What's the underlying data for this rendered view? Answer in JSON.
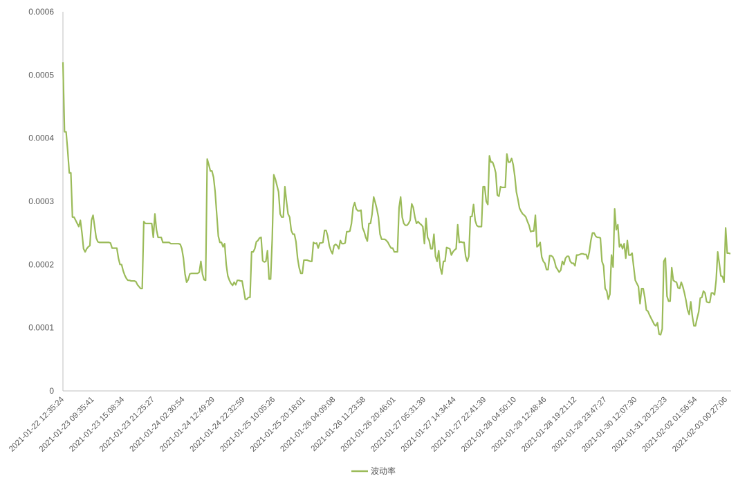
{
  "chart_data": {
    "type": "line",
    "title": "",
    "xlabel": "",
    "ylabel": "",
    "ylim": [
      0,
      0.0006
    ],
    "yticks": [
      "0",
      "0.0001",
      "0.0002",
      "0.0003",
      "0.0004",
      "0.0005",
      "0.0006"
    ],
    "ytick_values": [
      0,
      0.0001,
      0.0002,
      0.0003,
      0.0004,
      0.0005,
      0.0006
    ],
    "x_tick_labels": [
      "2021-01-22 12:35:24",
      "2021-01-23 09:35:41",
      "2021-01-23 15:08:34",
      "2021-01-23 21:25:27",
      "2021-01-24 02:30:54",
      "2021-01-24 12:49:29",
      "2021-01-24 22:32:59",
      "2021-01-25 10:05:26",
      "2021-01-25 20:18:01",
      "2021-01-26 04:09:08",
      "2021-01-26 11:23:58",
      "2021-01-26 20:46:01",
      "2021-01-27 05:31:39",
      "2021-01-27 14:34:44",
      "2021-01-27 22:41:39",
      "2021-01-28 04:50:10",
      "2021-01-28 12:48:46",
      "2021-01-28 19:21:12",
      "2021-01-28 23:47:27",
      "2021-01-30 12:07:30",
      "2021-01-31 20:23:23",
      "2021-02-02 01:56:54",
      "2021-02-03 00:27:06"
    ],
    "grid": false,
    "legend_position": "bottom",
    "colors": {
      "line": "#9bbb59",
      "axis": "#bfbfbf",
      "text": "#595959"
    },
    "series": [
      {
        "name": "波动率",
        "values": [
          0.00052,
          0.00041,
          0.00041,
          0.00038,
          0.000345,
          0.000345,
          0.000275,
          0.000275,
          0.00027,
          0.000265,
          0.00026,
          0.00027,
          0.00025,
          0.000225,
          0.00022,
          0.000225,
          0.000228,
          0.00023,
          0.00027,
          0.000278,
          0.00026,
          0.000242,
          0.000236,
          0.000235,
          0.000235,
          0.000235,
          0.000235,
          0.000235,
          0.000235,
          0.000235,
          0.000234,
          0.000226,
          0.000226,
          0.000226,
          0.000226,
          0.00021,
          0.0002,
          0.0002,
          0.00019,
          0.000183,
          0.000178,
          0.000175,
          0.000175,
          0.000174,
          0.000174,
          0.000174,
          0.000173,
          0.000168,
          0.000165,
          0.000162,
          0.000162,
          0.000268,
          0.000265,
          0.000265,
          0.000265,
          0.000265,
          0.000265,
          0.000243,
          0.00028,
          0.000255,
          0.000243,
          0.000243,
          0.000243,
          0.000235,
          0.000235,
          0.000235,
          0.000235,
          0.000235,
          0.000233,
          0.000233,
          0.000233,
          0.000233,
          0.000233,
          0.000233,
          0.000232,
          0.000225,
          0.00021,
          0.000185,
          0.000172,
          0.000176,
          0.000185,
          0.000186,
          0.000186,
          0.000186,
          0.000186,
          0.000186,
          0.000188,
          0.000205,
          0.000185,
          0.000176,
          0.000175,
          0.000367,
          0.000358,
          0.000348,
          0.000348,
          0.000338,
          0.000315,
          0.00028,
          0.000245,
          0.000235,
          0.000235,
          0.000228,
          0.000233,
          0.0002,
          0.000182,
          0.000175,
          0.00017,
          0.000167,
          0.000172,
          0.000168,
          0.000175,
          0.000175,
          0.000174,
          0.000174,
          0.00016,
          0.000145,
          0.000145,
          0.000148,
          0.000148,
          0.00022,
          0.00022,
          0.000225,
          0.000236,
          0.000238,
          0.000242,
          0.000243,
          0.000206,
          0.000204,
          0.000205,
          0.000222,
          0.000177,
          0.000177,
          0.00024,
          0.000342,
          0.000335,
          0.000325,
          0.000315,
          0.00028,
          0.000275,
          0.000275,
          0.000323,
          0.0003,
          0.00028,
          0.000275,
          0.000254,
          0.000248,
          0.000248,
          0.000236,
          0.00021,
          0.000195,
          0.000186,
          0.000186,
          0.000207,
          0.000207,
          0.000207,
          0.000206,
          0.000205,
          0.000205,
          0.000235,
          0.000233,
          0.000234,
          0.000226,
          0.000234,
          0.000234,
          0.000235,
          0.000254,
          0.000254,
          0.000245,
          0.00023,
          0.000222,
          0.000217,
          0.00023,
          0.000232,
          0.00023,
          0.000225,
          0.000238,
          0.000233,
          0.000233,
          0.000234,
          0.000252,
          0.000252,
          0.000253,
          0.000265,
          0.00029,
          0.000298,
          0.000288,
          0.000285,
          0.000285,
          0.000286,
          0.000258,
          0.000252,
          0.000243,
          0.000237,
          0.000265,
          0.000265,
          0.00028,
          0.000307,
          0.000298,
          0.000288,
          0.000275,
          0.000248,
          0.00024,
          0.00024,
          0.00024,
          0.000238,
          0.000235,
          0.00023,
          0.000226,
          0.000226,
          0.00022,
          0.00022,
          0.00022,
          0.00029,
          0.000307,
          0.000275,
          0.000265,
          0.000262,
          0.000262,
          0.000265,
          0.00027,
          0.000296,
          0.00029,
          0.000275,
          0.000265,
          0.000268,
          0.000265,
          0.000263,
          0.00026,
          0.000233,
          0.000273,
          0.000243,
          0.000238,
          0.000225,
          0.000225,
          0.000248,
          0.000213,
          0.000205,
          0.000222,
          0.000195,
          0.000185,
          0.000205,
          0.000205,
          0.000227,
          0.000226,
          0.000225,
          0.000215,
          0.00022,
          0.000223,
          0.000225,
          0.000263,
          0.000235,
          0.000236,
          0.000235,
          0.000235,
          0.000213,
          0.000205,
          0.000213,
          0.000276,
          0.000276,
          0.000295,
          0.00027,
          0.000262,
          0.00026,
          0.00026,
          0.00026,
          0.000323,
          0.000323,
          0.0003,
          0.000295,
          0.000372,
          0.000362,
          0.000362,
          0.000355,
          0.000345,
          0.00031,
          0.000308,
          0.000323,
          0.000322,
          0.000322,
          0.000322,
          0.000375,
          0.000362,
          0.000362,
          0.000368,
          0.000358,
          0.00034,
          0.000315,
          0.000303,
          0.000289,
          0.000284,
          0.00028,
          0.000278,
          0.000275,
          0.000268,
          0.000262,
          0.000252,
          0.000253,
          0.000253,
          0.000278,
          0.000228,
          0.00023,
          0.000235,
          0.000212,
          0.000205,
          0.000202,
          0.000192,
          0.000192,
          0.000214,
          0.000214,
          0.000212,
          0.000206,
          0.000196,
          0.000192,
          0.000188,
          0.000191,
          0.000205,
          0.0002,
          0.00021,
          0.000213,
          0.000213,
          0.000205,
          0.000202,
          0.000202,
          0.000198,
          0.000215,
          0.000215,
          0.000216,
          0.000217,
          0.000217,
          0.000216,
          0.000216,
          0.000209,
          0.00022,
          0.000238,
          0.00025,
          0.00025,
          0.000245,
          0.000243,
          0.000243,
          0.000242,
          0.000205,
          0.000198,
          0.000162,
          0.000158,
          0.000145,
          0.000153,
          0.000215,
          0.000196,
          0.000288,
          0.000255,
          0.000263,
          0.000228,
          0.000232,
          0.000225,
          0.000233,
          0.00021,
          0.000238,
          0.000215,
          0.000215,
          0.000218,
          0.000196,
          0.000175,
          0.00017,
          0.000165,
          0.000138,
          0.000162,
          0.000162,
          0.000148,
          0.000128,
          0.000126,
          0.00012,
          0.000115,
          0.00011,
          0.000105,
          0.000103,
          0.000108,
          9e-05,
          8.9e-05,
          9.8e-05,
          0.000205,
          0.00021,
          0.00015,
          0.000142,
          0.000142,
          0.000195,
          0.000175,
          0.000173,
          0.000172,
          0.000163,
          0.000162,
          0.000172,
          0.000165,
          0.000155,
          0.000143,
          0.000128,
          0.000121,
          0.000141,
          0.000118,
          0.000103,
          0.000103,
          0.000115,
          0.000125,
          0.000147,
          0.000148,
          0.000158,
          0.000155,
          0.000141,
          0.00014,
          0.00014,
          0.000155,
          0.000155,
          0.000152,
          0.000175,
          0.00022,
          0.000202,
          0.000182,
          0.000181,
          0.000172,
          0.000258,
          0.000218,
          0.000218,
          0.000217
        ]
      }
    ]
  }
}
